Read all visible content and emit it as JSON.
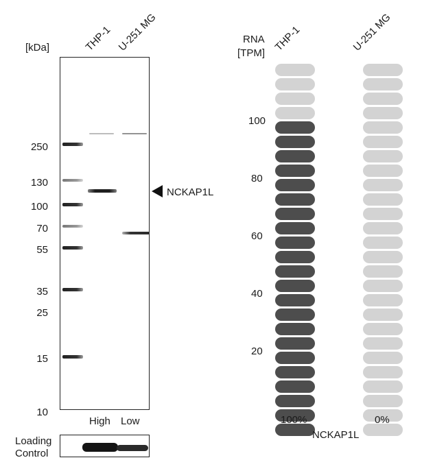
{
  "blot": {
    "unit_label": "[kDa]",
    "lanes": [
      "THP-1",
      "U-251 MG"
    ],
    "markers": [
      "250",
      "130",
      "100",
      "70",
      "55",
      "35",
      "25",
      "15",
      "10"
    ],
    "lane_levels": [
      "High",
      "Low"
    ],
    "target_label": "NCKAP1L",
    "loading_control_line1": "Loading",
    "loading_control_line2": "Control"
  },
  "rna": {
    "axis_label_line1": "RNA",
    "axis_label_line2": "[TPM]",
    "ticks": [
      "100",
      "80",
      "60",
      "40",
      "20"
    ],
    "samples": [
      {
        "name": "THP-1",
        "value_pct": 100,
        "label": "100%"
      },
      {
        "name": "U-251 MG",
        "value_pct": 0,
        "label": "0%"
      }
    ],
    "gene": "NCKAP1L",
    "colors": {
      "filled": "#4d4d4d",
      "empty": "#d3d3d3"
    }
  }
}
